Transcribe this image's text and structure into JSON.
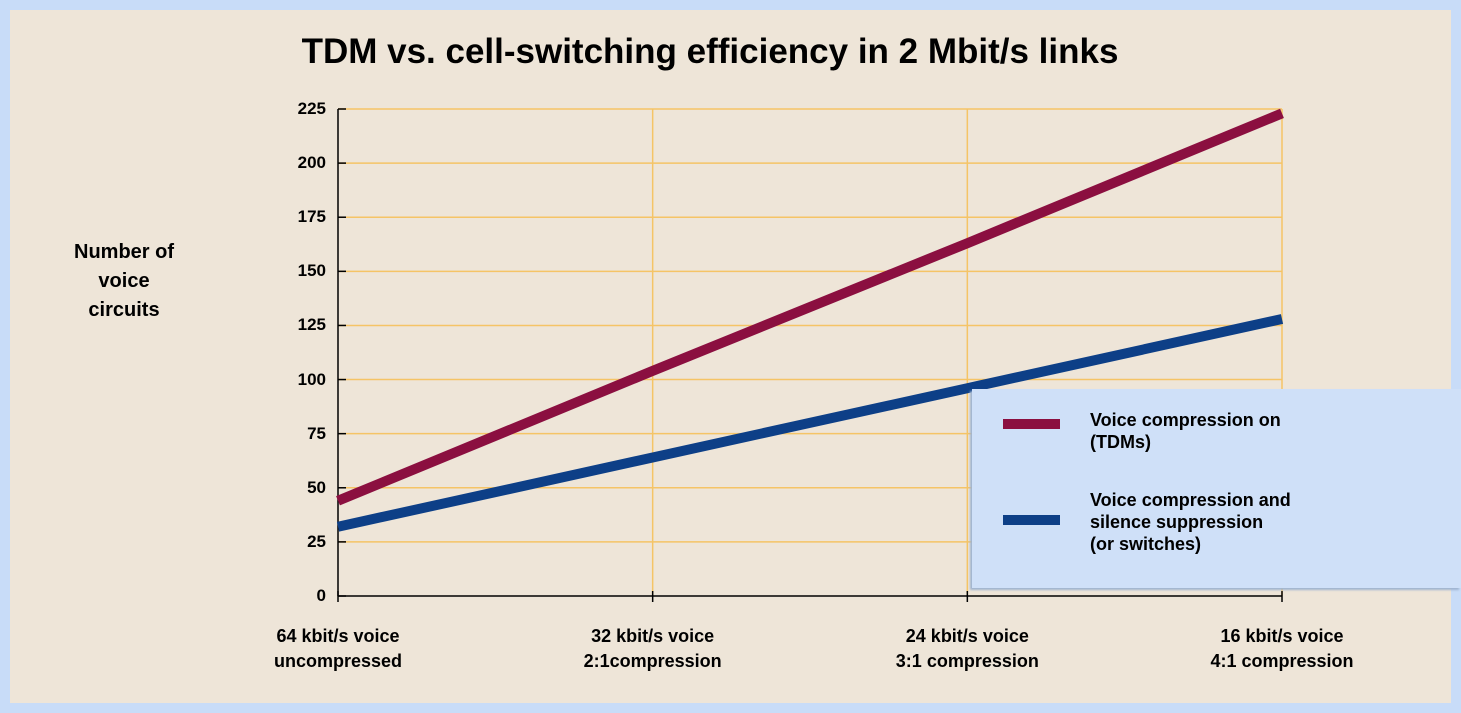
{
  "chart_data": {
    "type": "line",
    "title": "TDM vs. cell-switching efficiency in 2 Mbit/s links",
    "y_label": "Number of\nvoice\ncircuits",
    "categories": [
      "64 kbit/s voice\nuncompressed",
      "32 kbit/s voice\n2:1compression",
      "24 kbit/s voice\n3:1 compression",
      "16 kbit/s voice\n4:1 compression"
    ],
    "series": [
      {
        "name": "Voice compression on\n(TDMs)",
        "color": "#8b0f40",
        "values": [
          44,
          104,
          163,
          223
        ]
      },
      {
        "name": "Voice compression and\nsilence suppression\n(or switches)",
        "color": "#0d3f87",
        "values": [
          32,
          64,
          96,
          128
        ]
      }
    ],
    "ylim": [
      0,
      225
    ],
    "yticks": [
      0,
      25,
      50,
      75,
      100,
      125,
      150,
      175,
      200,
      225
    ],
    "grid": true
  }
}
